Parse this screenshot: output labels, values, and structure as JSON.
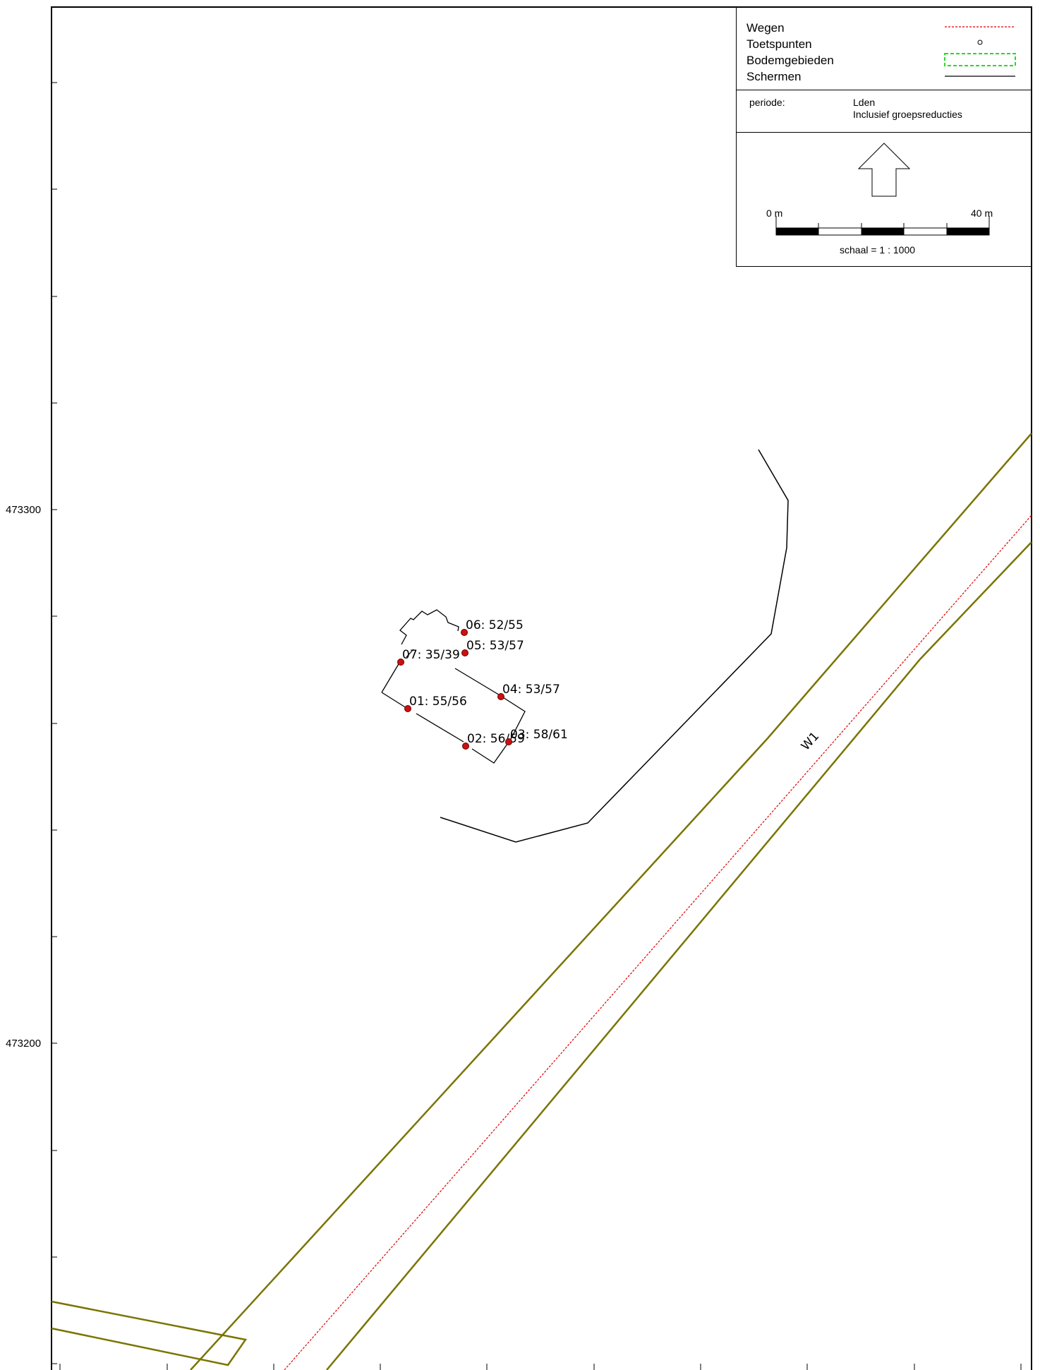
{
  "y_axis_labels": [
    "473300",
    "473200"
  ],
  "legend": {
    "items": [
      {
        "label": "Wegen",
        "symbol": "road-line"
      },
      {
        "label": "Toetspunten",
        "symbol": "test-point"
      },
      {
        "label": "Bodemgebieden",
        "symbol": "ground-area"
      },
      {
        "label": "Schermen",
        "symbol": "screen-line"
      }
    ],
    "period_label": "periode:",
    "period_value": "Lden",
    "period_note": "Inclusief groepsreducties",
    "scale_start": "0 m",
    "scale_end": "40 m",
    "scale_text": "schaal = 1 : 1000"
  },
  "road_label": "W1",
  "test_points": [
    {
      "label": "01: 55/56"
    },
    {
      "label": "02: 56/59"
    },
    {
      "label": "03: 58/61"
    },
    {
      "label": "04: 53/57"
    },
    {
      "label": "05: 53/57"
    },
    {
      "label": "06: 52/55"
    },
    {
      "label": "07: 35/39"
    }
  ],
  "colors": {
    "ground_area": "#7a7400",
    "road": "#e00000",
    "test_point": "#cc1010",
    "screen": "#000000",
    "legend_ground": "#22dd22"
  }
}
